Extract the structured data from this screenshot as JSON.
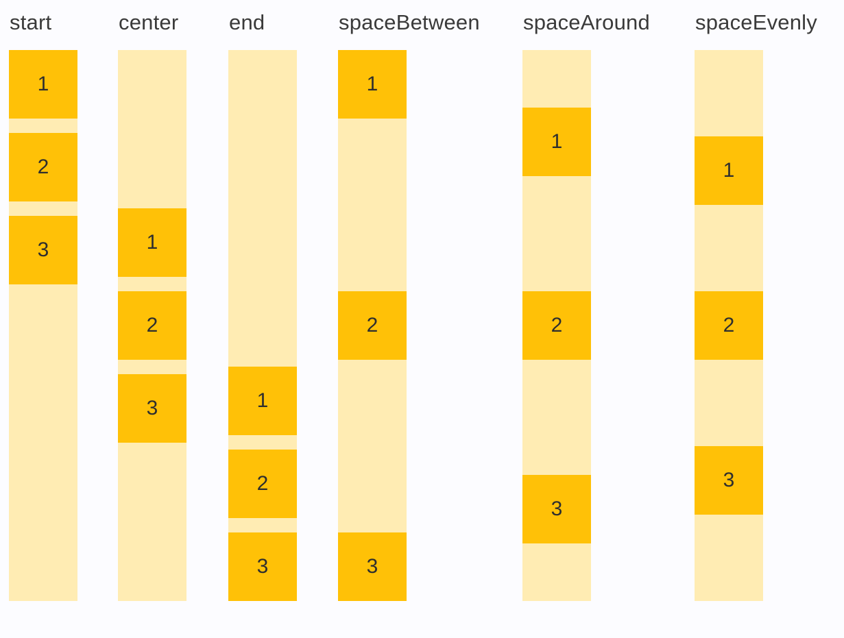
{
  "palette": {
    "item_color": "#FFC107",
    "track_color": "#FFECB3",
    "label_color": "#3A3A3A",
    "item_number_color": "#2E2E2E",
    "background": "#FCFCFF"
  },
  "columns": [
    {
      "label": "start",
      "alignment": "start",
      "items": [
        "1",
        "2",
        "3"
      ]
    },
    {
      "label": "center",
      "alignment": "center",
      "items": [
        "1",
        "2",
        "3"
      ]
    },
    {
      "label": "end",
      "alignment": "end",
      "items": [
        "1",
        "2",
        "3"
      ]
    },
    {
      "label": "spaceBetween",
      "alignment": "space-between",
      "items": [
        "1",
        "2",
        "3"
      ]
    },
    {
      "label": "spaceAround",
      "alignment": "space-around",
      "items": [
        "1",
        "2",
        "3"
      ]
    },
    {
      "label": "spaceEvenly",
      "alignment": "space-evenly",
      "items": [
        "1",
        "2",
        "3"
      ]
    }
  ]
}
